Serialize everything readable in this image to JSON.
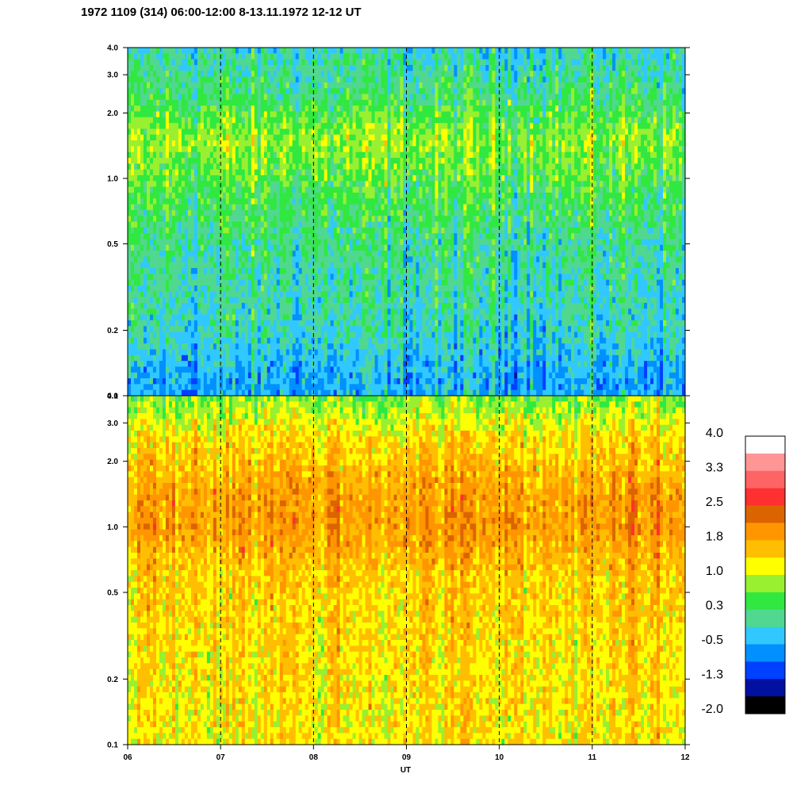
{
  "title": "1972 1109 (314) 06:00-12:00 8-13.11.1972  12-12 UT",
  "chart_data": [
    {
      "type": "heatmap",
      "panel": "upper",
      "x_ticks": [
        "06",
        "07",
        "08",
        "09",
        "10",
        "11",
        "12"
      ],
      "x_range": [
        6,
        12
      ],
      "y_scale": "log",
      "y_range": [
        0.1,
        4.0
      ],
      "y_ticks": [
        {
          "value": 0.1,
          "label": "0.1"
        },
        {
          "value": 0.2,
          "label": "0.2"
        },
        {
          "value": 0.5,
          "label": "0.5"
        },
        {
          "value": 1.0,
          "label": "1.0"
        },
        {
          "value": 2.0,
          "label": "2.0"
        },
        {
          "value": 3.0,
          "label": "3.0"
        },
        {
          "value": 4.0,
          "label": "4.0"
        }
      ],
      "hour_marker_lines": [
        7,
        8,
        9,
        10,
        11
      ],
      "band_mean_values": [
        {
          "y": 0.12,
          "v": -0.5
        },
        {
          "y": 0.2,
          "v": -0.1
        },
        {
          "y": 0.5,
          "v": 0.1
        },
        {
          "y": 1.0,
          "v": 0.5
        },
        {
          "y": 1.5,
          "v": 0.8
        },
        {
          "y": 2.5,
          "v": 0.2
        },
        {
          "y": 4.0,
          "v": -0.1
        }
      ]
    },
    {
      "type": "heatmap",
      "panel": "lower",
      "x_ticks": [
        "06",
        "07",
        "08",
        "09",
        "10",
        "11",
        "12"
      ],
      "x_range": [
        6,
        12
      ],
      "xlabel": "UT",
      "y_scale": "log",
      "y_range": [
        0.1,
        4.0
      ],
      "y_ticks": [
        {
          "value": 0.1,
          "label": "0.1"
        },
        {
          "value": 0.2,
          "label": "0.2"
        },
        {
          "value": 0.5,
          "label": "0.5"
        },
        {
          "value": 1.0,
          "label": "1.0"
        },
        {
          "value": 2.0,
          "label": "2.0"
        },
        {
          "value": 3.0,
          "label": "3.0"
        },
        {
          "value": 4.0,
          "label": "4.0"
        }
      ],
      "hour_marker_lines": [
        7,
        8,
        9,
        10,
        11
      ],
      "band_mean_values": [
        {
          "y": 0.12,
          "v": 1.3
        },
        {
          "y": 0.3,
          "v": 1.4
        },
        {
          "y": 0.6,
          "v": 1.5
        },
        {
          "y": 1.0,
          "v": 1.9
        },
        {
          "y": 1.5,
          "v": 1.8
        },
        {
          "y": 2.5,
          "v": 1.4
        },
        {
          "y": 4.0,
          "v": 0.7
        }
      ]
    }
  ],
  "colorbar": {
    "labels": [
      "4.0",
      "3.3",
      "2.5",
      "1.8",
      "1.0",
      "0.3",
      "-0.5",
      "-1.3",
      "-2.0"
    ],
    "range": [
      -2.0,
      4.0
    ],
    "colors": [
      "#000000",
      "#0010a0",
      "#0040ff",
      "#0090ff",
      "#30c8ff",
      "#50d890",
      "#30e840",
      "#98f030",
      "#ffff00",
      "#ffbe00",
      "#ff9600",
      "#dc6400",
      "#ff3030",
      "#ff6464",
      "#ff9696",
      "#ffffff"
    ]
  }
}
